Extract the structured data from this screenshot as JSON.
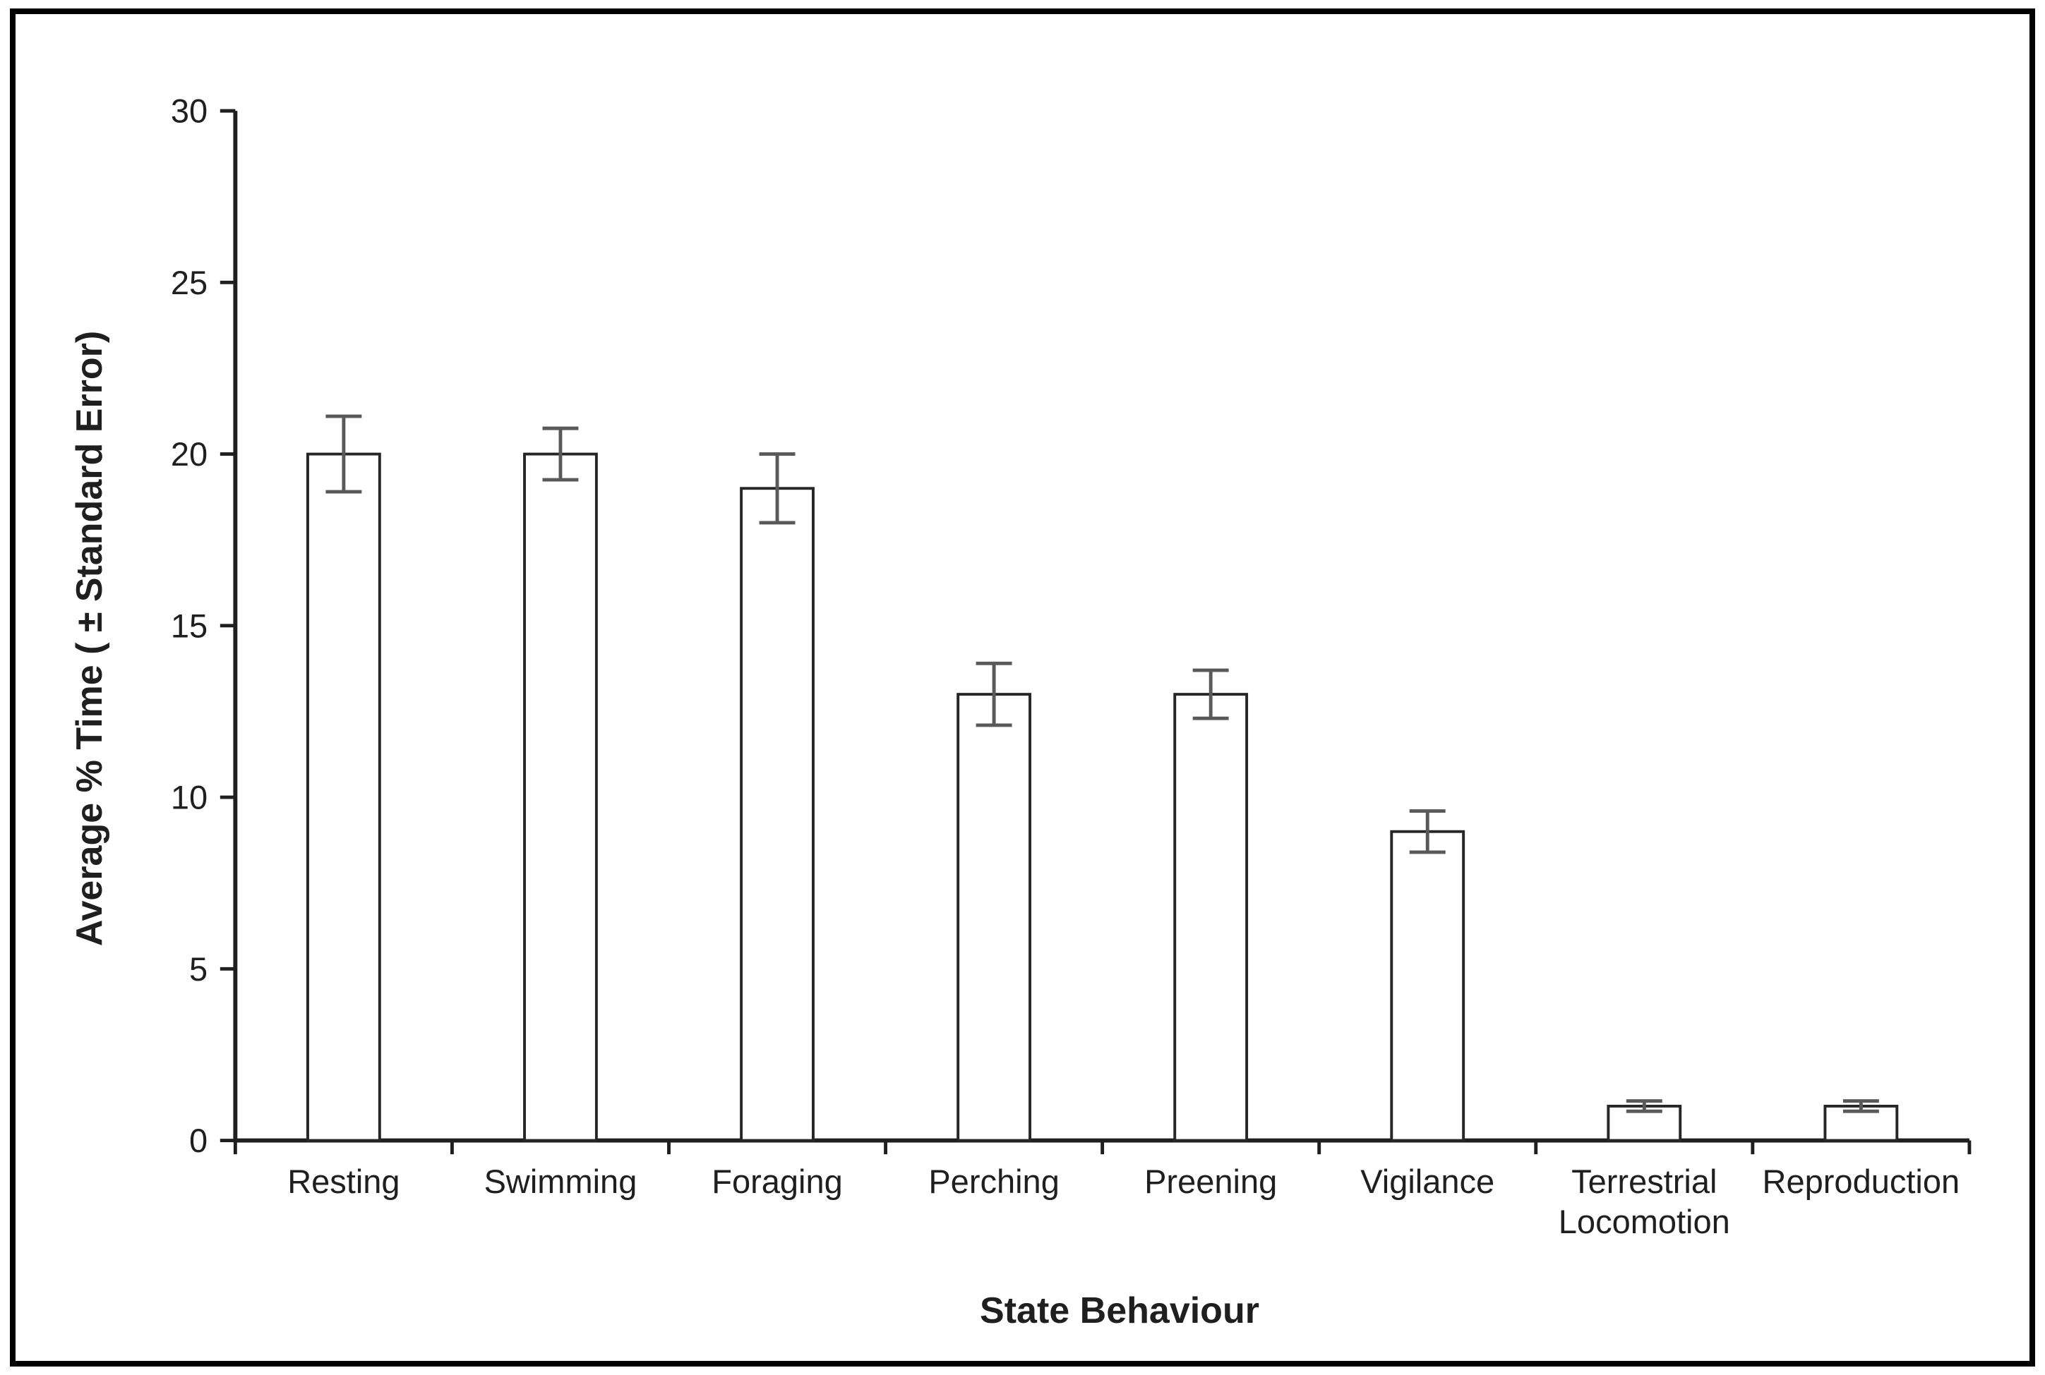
{
  "figure": {
    "background": "#ffffff",
    "border_color": "#000000"
  },
  "chart_data": {
    "type": "bar",
    "title": "",
    "xlabel": "State Behaviour",
    "ylabel": "Average % Time ( ± Standard Error)",
    "categories": [
      "Resting",
      "Swimming",
      "Foraging",
      "Perching",
      "Preening",
      "Vigilance",
      "Terrestrial\nLocomotion",
      "Reproduction"
    ],
    "values": [
      20,
      20,
      19,
      13,
      13,
      9,
      1,
      1
    ],
    "errors": [
      1.1,
      0.75,
      1.0,
      0.9,
      0.7,
      0.6,
      0.15,
      0.15
    ],
    "ylim": [
      0,
      30
    ],
    "yticks": [
      0,
      5,
      10,
      15,
      20,
      25,
      30
    ],
    "grid": false,
    "legend_position": "none",
    "bar_fill": "#ffffff",
    "bar_stroke": "#262626",
    "error_color": "#595959",
    "axis_color": "#1f1f1f",
    "text_color": "#1f1f1f"
  }
}
